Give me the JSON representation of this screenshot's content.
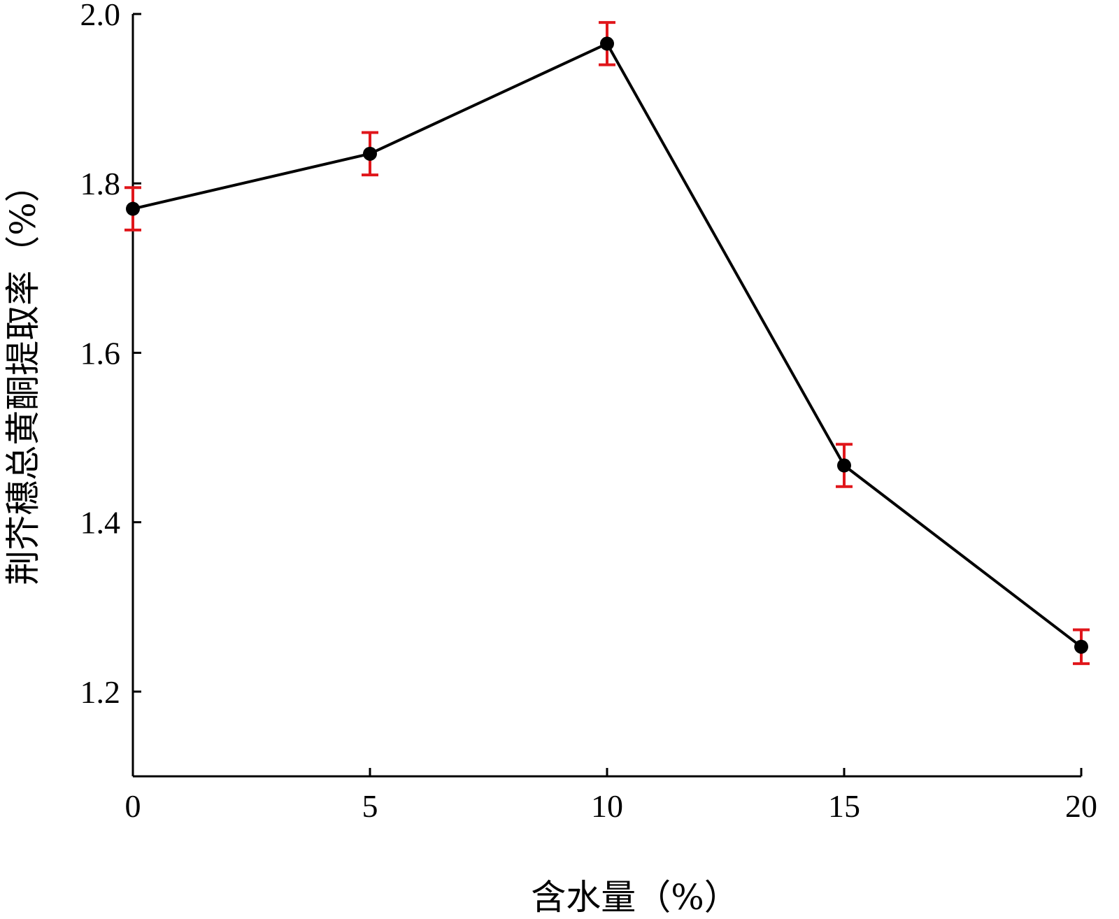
{
  "chart_data": {
    "type": "line",
    "title": "",
    "xlabel": "含水量（%）",
    "ylabel": "荆芥穗总黄酮提取率（%）",
    "x": [
      0,
      5,
      10,
      15,
      20
    ],
    "series": [
      {
        "values": [
          1.77,
          1.835,
          1.965,
          1.467,
          1.253
        ],
        "error": [
          0.025,
          0.025,
          0.025,
          0.025,
          0.02
        ]
      }
    ],
    "xlim": [
      0,
      20
    ],
    "ylim": [
      1.1,
      2.0
    ],
    "xticks": [
      "0",
      "5",
      "10",
      "15",
      "20"
    ],
    "yticks": [
      "1.2",
      "1.4",
      "1.6",
      "1.8",
      "2.0"
    ],
    "grid": false,
    "colors": {
      "line": "#000000",
      "marker": "#000000",
      "error_bar": "#e0161b"
    }
  }
}
